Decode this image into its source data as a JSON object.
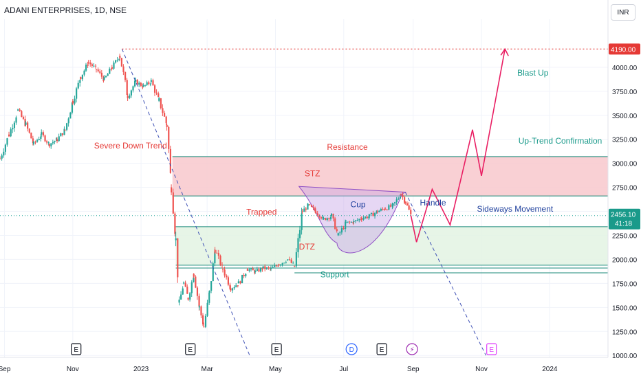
{
  "header": {
    "symbol_title": "ADANI ENTERPRISES, 1D, NSE",
    "currency": "INR"
  },
  "chart_data": {
    "type": "candlestick",
    "ylim": [
      980,
      4500
    ],
    "y_ticks": [
      1000,
      1250,
      1500,
      1750,
      2000,
      2250,
      2500,
      2750,
      3000,
      3250,
      3500,
      3750,
      4000
    ],
    "y_tick_labels": [
      "1000.00",
      "1250.00",
      "1500.00",
      "1750.00",
      "2000.00",
      "2250.00",
      "2500.00",
      "2750.00",
      "3000.00",
      "3250.00",
      "3500.00",
      "3750.00",
      "4000.00"
    ],
    "x_range": [
      "2022-08-28",
      "2024-02-22"
    ],
    "x_ticks": [
      {
        "date": "2022-09-01",
        "label": "Sep"
      },
      {
        "date": "2022-11-01",
        "label": "Nov"
      },
      {
        "date": "2023-01-01",
        "label": "2023"
      },
      {
        "date": "2023-03-01",
        "label": "Mar"
      },
      {
        "date": "2023-05-01",
        "label": "May"
      },
      {
        "date": "2023-07-01",
        "label": "Jul"
      },
      {
        "date": "2023-09-01",
        "label": "Sep"
      },
      {
        "date": "2023-11-01",
        "label": "Nov"
      },
      {
        "date": "2024-01-01",
        "label": "2024"
      }
    ],
    "price_series": [
      [
        "2022-08-28",
        3050
      ],
      [
        "2022-09-05",
        3300
      ],
      [
        "2022-09-13",
        3550
      ],
      [
        "2022-09-20",
        3400
      ],
      [
        "2022-09-27",
        3200
      ],
      [
        "2022-10-04",
        3300
      ],
      [
        "2022-10-11",
        3200
      ],
      [
        "2022-10-18",
        3250
      ],
      [
        "2022-10-25",
        3350
      ],
      [
        "2022-11-01",
        3650
      ],
      [
        "2022-11-08",
        3900
      ],
      [
        "2022-11-15",
        4050
      ],
      [
        "2022-11-22",
        3980
      ],
      [
        "2022-11-29",
        3870
      ],
      [
        "2022-12-06",
        4000
      ],
      [
        "2022-12-13",
        4120
      ],
      [
        "2022-12-20",
        3700
      ],
      [
        "2022-12-27",
        3850
      ],
      [
        "2023-01-03",
        3800
      ],
      [
        "2023-01-10",
        3850
      ],
      [
        "2023-01-17",
        3650
      ],
      [
        "2023-01-24",
        3400
      ],
      [
        "2023-01-28",
        2750
      ],
      [
        "2023-02-01",
        2200
      ],
      [
        "2023-02-04",
        1550
      ],
      [
        "2023-02-08",
        1750
      ],
      [
        "2023-02-12",
        1600
      ],
      [
        "2023-02-17",
        1850
      ],
      [
        "2023-02-22",
        1500
      ],
      [
        "2023-02-26",
        1300
      ],
      [
        "2023-03-03",
        1650
      ],
      [
        "2023-03-08",
        2100
      ],
      [
        "2023-03-15",
        1900
      ],
      [
        "2023-03-22",
        1700
      ],
      [
        "2023-03-29",
        1750
      ],
      [
        "2023-04-06",
        1900
      ],
      [
        "2023-04-13",
        1870
      ],
      [
        "2023-04-20",
        1910
      ],
      [
        "2023-04-27",
        1900
      ],
      [
        "2023-05-04",
        1950
      ],
      [
        "2023-05-12",
        2000
      ],
      [
        "2023-05-18",
        1930
      ],
      [
        "2023-05-25",
        2500
      ],
      [
        "2023-05-30",
        2560
      ],
      [
        "2023-06-06",
        2500
      ],
      [
        "2023-06-13",
        2420
      ],
      [
        "2023-06-20",
        2450
      ],
      [
        "2023-06-26",
        2250
      ],
      [
        "2023-07-03",
        2380
      ],
      [
        "2023-07-10",
        2390
      ],
      [
        "2023-07-17",
        2430
      ],
      [
        "2023-07-24",
        2450
      ],
      [
        "2023-07-31",
        2500
      ],
      [
        "2023-08-07",
        2530
      ],
      [
        "2023-08-14",
        2560
      ],
      [
        "2023-08-21",
        2680
      ],
      [
        "2023-08-25",
        2600
      ],
      [
        "2023-08-30",
        2456
      ]
    ],
    "last_price_label": "2456.10",
    "countdown_label": "41:18",
    "target_price_label": "4190.00",
    "target_price": 4190,
    "zones": [
      {
        "name": "resistance",
        "top": 3070,
        "bottom": 2660,
        "start": "2023-01-29",
        "end": "2024-02-22",
        "color": "#f8c8cc"
      },
      {
        "name": "support",
        "top": 2340,
        "bottom": 1940,
        "start": "2023-02-01",
        "end": "2024-02-22",
        "color": "#e3f3e3"
      }
    ],
    "lines": [
      {
        "name": "support-line-1",
        "price": 1910,
        "start": "2023-02-01",
        "end": "2024-02-22"
      },
      {
        "name": "support-line-2",
        "price": 1860,
        "start": "2023-05-18",
        "end": "2024-02-22"
      }
    ],
    "down_trend_line": [
      [
        "2022-12-15",
        4190
      ],
      [
        "2023-04-08",
        1000
      ]
    ],
    "down_trend_line_2": [
      [
        "2023-08-25",
        2700
      ],
      [
        "2023-11-05",
        1000
      ]
    ],
    "cup_top_line": [
      [
        "2023-05-22",
        2760
      ],
      [
        "2023-08-25",
        2700
      ]
    ],
    "cup_curve": [
      [
        "2023-06-10",
        2480
      ],
      [
        "2023-06-25",
        2170
      ],
      [
        "2023-07-12",
        2220
      ],
      [
        "2023-07-28",
        2420
      ],
      [
        "2023-08-22",
        2680
      ]
    ],
    "projection_path": [
      [
        "2023-08-30",
        2456
      ],
      [
        "2023-09-04",
        2180
      ],
      [
        "2023-09-18",
        2730
      ],
      [
        "2023-10-04",
        2360
      ],
      [
        "2023-10-24",
        3350
      ],
      [
        "2023-11-01",
        2870
      ],
      [
        "2023-11-22",
        4190
      ]
    ],
    "annotations": [
      {
        "text": "Severe Down Trend",
        "date": "2022-11-20",
        "price": 3155,
        "color": "#e53935"
      },
      {
        "text": "Resistance",
        "date": "2023-06-16",
        "price": 3140,
        "color": "#e53935"
      },
      {
        "text": "STZ",
        "date": "2023-05-27",
        "price": 2865,
        "color": "#e53935"
      },
      {
        "text": "Trapped",
        "date": "2023-04-05",
        "price": 2465,
        "color": "#e53935"
      },
      {
        "text": "Cup",
        "date": "2023-07-07",
        "price": 2545,
        "color": "#1e3f9c"
      },
      {
        "text": "Handle",
        "date": "2023-09-07",
        "price": 2560,
        "color": "#1e3f9c"
      },
      {
        "text": "Sideways Movement",
        "date": "2023-10-28",
        "price": 2495,
        "color": "#1e3f9c"
      },
      {
        "text": "DTZ",
        "date": "2023-05-22",
        "price": 2105,
        "color": "#e53935"
      },
      {
        "text": "Support",
        "date": "2023-06-10",
        "price": 1815,
        "color": "#1a9a8a"
      },
      {
        "text": "Up-Trend Confirmation",
        "date": "2023-12-04",
        "price": 3205,
        "color": "#1a9a8a"
      },
      {
        "text": "Blast Up",
        "date": "2023-12-03",
        "price": 3915,
        "color": "#1a9a8a"
      }
    ],
    "event_markers": [
      {
        "date": "2022-11-04",
        "label": "E",
        "kind": "earnings"
      },
      {
        "date": "2023-02-14",
        "label": "E",
        "kind": "earnings"
      },
      {
        "date": "2023-05-02",
        "label": "E",
        "kind": "earnings"
      },
      {
        "date": "2023-07-08",
        "label": "D",
        "kind": "dividend"
      },
      {
        "date": "2023-08-04",
        "label": "E",
        "kind": "earnings"
      },
      {
        "date": "2023-08-31",
        "label": "⚡",
        "kind": "split"
      },
      {
        "date": "2023-11-10",
        "label": "E",
        "kind": "earnings-upcoming"
      }
    ]
  }
}
